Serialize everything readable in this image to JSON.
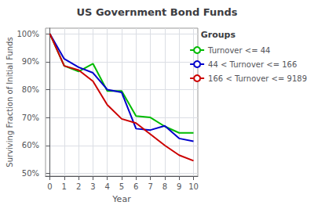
{
  "chart_data": {
    "type": "line",
    "title": "US Government Bond Funds",
    "xlabel": "Year",
    "ylabel": "Surviving Fraction of Initial Funds",
    "x": [
      0,
      1,
      2,
      3,
      4,
      5,
      6,
      7,
      8,
      9,
      10
    ],
    "series": [
      {
        "name": "Turnover <= 44",
        "color": "#00BB00",
        "values": [
          1.0,
          0.885,
          0.865,
          0.893,
          0.795,
          0.795,
          0.705,
          0.7,
          0.668,
          0.645,
          0.645
        ]
      },
      {
        "name": "44 < Turnover <= 166",
        "color": "#0000CC",
        "values": [
          1.0,
          0.91,
          0.88,
          0.86,
          0.8,
          0.79,
          0.66,
          0.655,
          0.67,
          0.625,
          0.615
        ]
      },
      {
        "name": "166 < Turnover <= 9189",
        "color": "#CC0000",
        "values": [
          1.0,
          0.885,
          0.87,
          0.83,
          0.745,
          0.695,
          0.68,
          0.64,
          0.6,
          0.565,
          0.545
        ]
      }
    ],
    "legend_title": "Groups",
    "legend": "right",
    "xlim": [
      -0.3,
      10.3
    ],
    "ylim": [
      0.49,
      1.02
    ],
    "xticks": [
      0,
      1,
      2,
      3,
      4,
      5,
      6,
      7,
      8,
      9,
      10
    ],
    "yticks": [
      {
        "value": 0.5,
        "label": "50%"
      },
      {
        "value": 0.6,
        "label": "60%"
      },
      {
        "value": 0.7,
        "label": "70%"
      },
      {
        "value": 0.8,
        "label": "80%"
      },
      {
        "value": 0.9,
        "label": "90%"
      },
      {
        "value": 1.0,
        "label": "100%"
      }
    ],
    "grid": true
  }
}
